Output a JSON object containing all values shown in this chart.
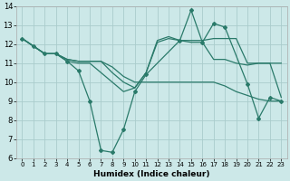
{
  "xlabel": "Humidex (Indice chaleur)",
  "bg_color": "#cce8e8",
  "grid_color": "#aacccc",
  "line_color": "#2a7a6a",
  "xlim": [
    -0.5,
    23.5
  ],
  "ylim": [
    6,
    14
  ],
  "xtick_labels": [
    "0",
    "1",
    "2",
    "3",
    "4",
    "5",
    "6",
    "7",
    "8",
    "9",
    "10",
    "11",
    "12",
    "13",
    "14",
    "15",
    "16",
    "17",
    "18",
    "19",
    "20",
    "21",
    "22",
    "23"
  ],
  "xtick_vals": [
    0,
    1,
    2,
    3,
    4,
    5,
    6,
    7,
    8,
    9,
    10,
    11,
    12,
    13,
    14,
    15,
    16,
    17,
    18,
    19,
    20,
    21,
    22,
    23
  ],
  "ytick_vals": [
    6,
    7,
    8,
    9,
    10,
    11,
    12,
    13,
    14
  ],
  "lines": [
    {
      "x": [
        0,
        1,
        2,
        3,
        4,
        5,
        6,
        7,
        8,
        9,
        10,
        11,
        14,
        15,
        16,
        17,
        18,
        20,
        21,
        22,
        23
      ],
      "y": [
        12.3,
        11.9,
        11.5,
        11.5,
        11.1,
        10.6,
        9.0,
        6.4,
        6.3,
        7.5,
        9.5,
        10.4,
        12.2,
        13.8,
        12.1,
        13.1,
        12.9,
        9.9,
        8.1,
        9.2,
        9.0
      ],
      "marker": true,
      "lw": 0.9
    },
    {
      "x": [
        0,
        1,
        2,
        3,
        4,
        5,
        6,
        7,
        8,
        9,
        10,
        11,
        12,
        13,
        14,
        15,
        16,
        17,
        18,
        19,
        20,
        21,
        22,
        23
      ],
      "y": [
        12.3,
        11.9,
        11.5,
        11.5,
        11.2,
        11.1,
        11.1,
        11.1,
        10.5,
        10.0,
        9.7,
        10.5,
        12.2,
        12.4,
        12.2,
        12.1,
        12.1,
        11.2,
        11.2,
        11.0,
        10.9,
        11.0,
        11.0,
        9.2
      ],
      "marker": false,
      "lw": 0.9
    },
    {
      "x": [
        0,
        1,
        2,
        3,
        4,
        5,
        6,
        7,
        8,
        9,
        10,
        11,
        12,
        13,
        14,
        15,
        16,
        17,
        18,
        19,
        20,
        21,
        22,
        23
      ],
      "y": [
        12.3,
        11.9,
        11.5,
        11.5,
        11.2,
        11.1,
        11.1,
        11.1,
        10.8,
        10.3,
        10.0,
        10.0,
        10.0,
        10.0,
        10.0,
        10.0,
        10.0,
        10.0,
        9.8,
        9.5,
        9.3,
        9.1,
        9.0,
        9.0
      ],
      "marker": false,
      "lw": 0.9
    },
    {
      "x": [
        0,
        1,
        2,
        3,
        4,
        5,
        6,
        9,
        10,
        11,
        12,
        13,
        14,
        15,
        16,
        17,
        18,
        19,
        20,
        21,
        22,
        23
      ],
      "y": [
        12.3,
        11.9,
        11.5,
        11.5,
        11.1,
        11.0,
        11.0,
        9.5,
        9.7,
        10.5,
        12.1,
        12.3,
        12.2,
        12.2,
        12.2,
        12.3,
        12.3,
        12.3,
        11.0,
        11.0,
        11.0,
        11.0
      ],
      "marker": false,
      "lw": 0.9
    }
  ]
}
